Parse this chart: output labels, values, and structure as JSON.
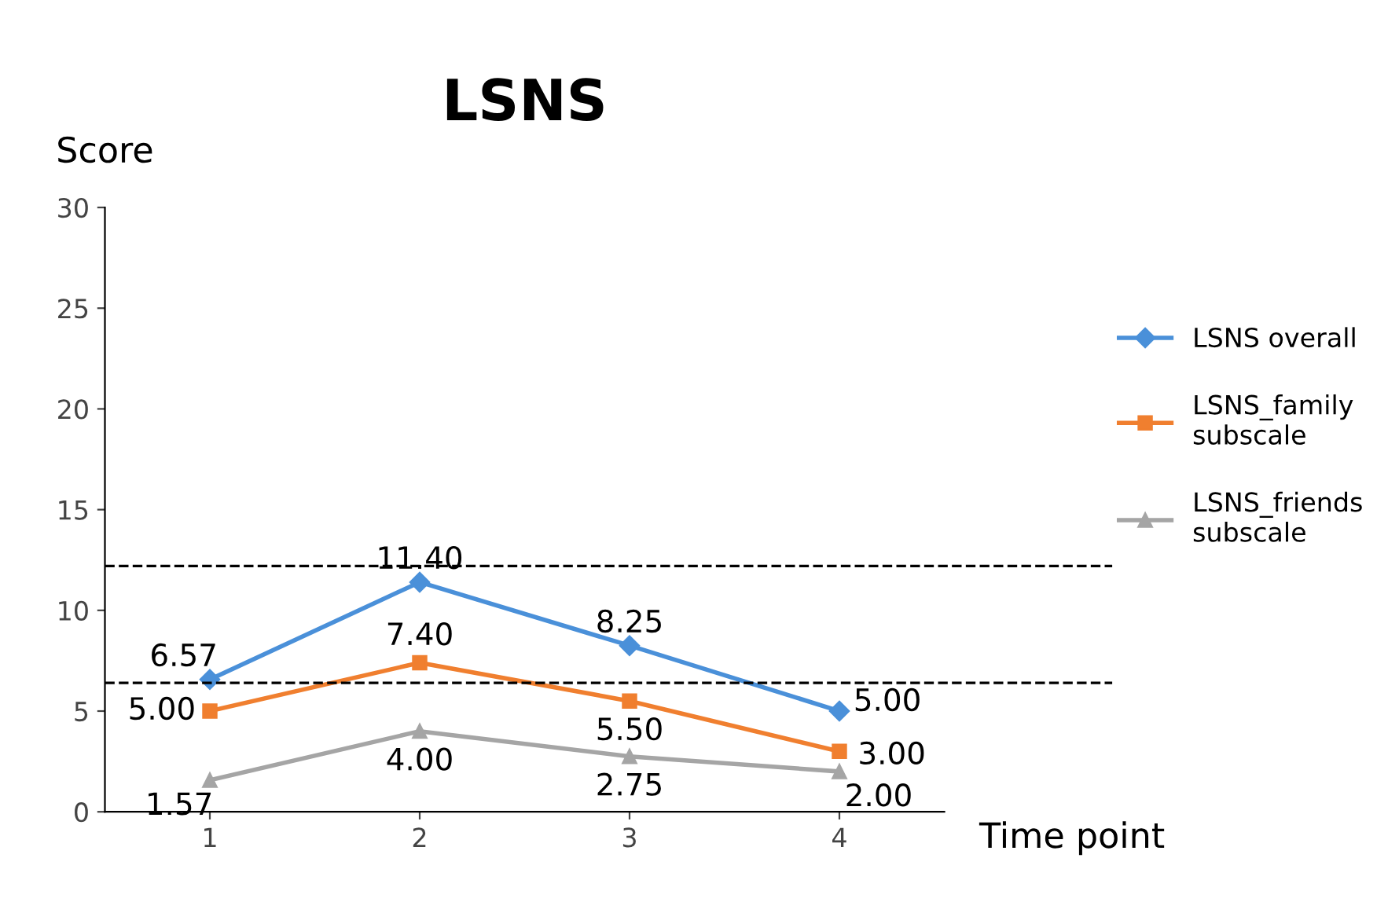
{
  "chart_data": {
    "type": "line",
    "title": "LSNS",
    "ylabel": "Score",
    "xlabel": "Time point",
    "categories": [
      "1",
      "2",
      "3",
      "4"
    ],
    "series": [
      {
        "name": "LSNS overall",
        "color": "#4a90d9",
        "marker": "diamond",
        "values": [
          6.57,
          11.4,
          8.25,
          5.0
        ],
        "value_labels": [
          "6.57",
          "11.40",
          "8.25",
          "5.00"
        ]
      },
      {
        "name": "LSNS_family subscale",
        "color": "#f07f2f",
        "marker": "square",
        "values": [
          5.0,
          7.4,
          5.5,
          3.0
        ],
        "value_labels": [
          "5.00",
          "7.40",
          "5.50",
          "3.00"
        ]
      },
      {
        "name": "LSNS_friends subscale",
        "color": "#a5a5a5",
        "marker": "triangle",
        "values": [
          1.57,
          4.0,
          2.75,
          2.0
        ],
        "value_labels": [
          "1.57",
          "4.00",
          "2.75",
          "2.00"
        ]
      }
    ],
    "ylim": [
      0,
      30
    ],
    "yticks": [
      0,
      5,
      10,
      15,
      20,
      25,
      30
    ],
    "ref_lines": [
      {
        "axis": "y",
        "value": 12.2,
        "color": "#000000",
        "line_style": "dashed"
      },
      {
        "axis": "y",
        "value": 6.4,
        "color": "#000000",
        "line_style": "dashed"
      }
    ],
    "grid": false,
    "legend": "right",
    "line_style": "solid"
  }
}
